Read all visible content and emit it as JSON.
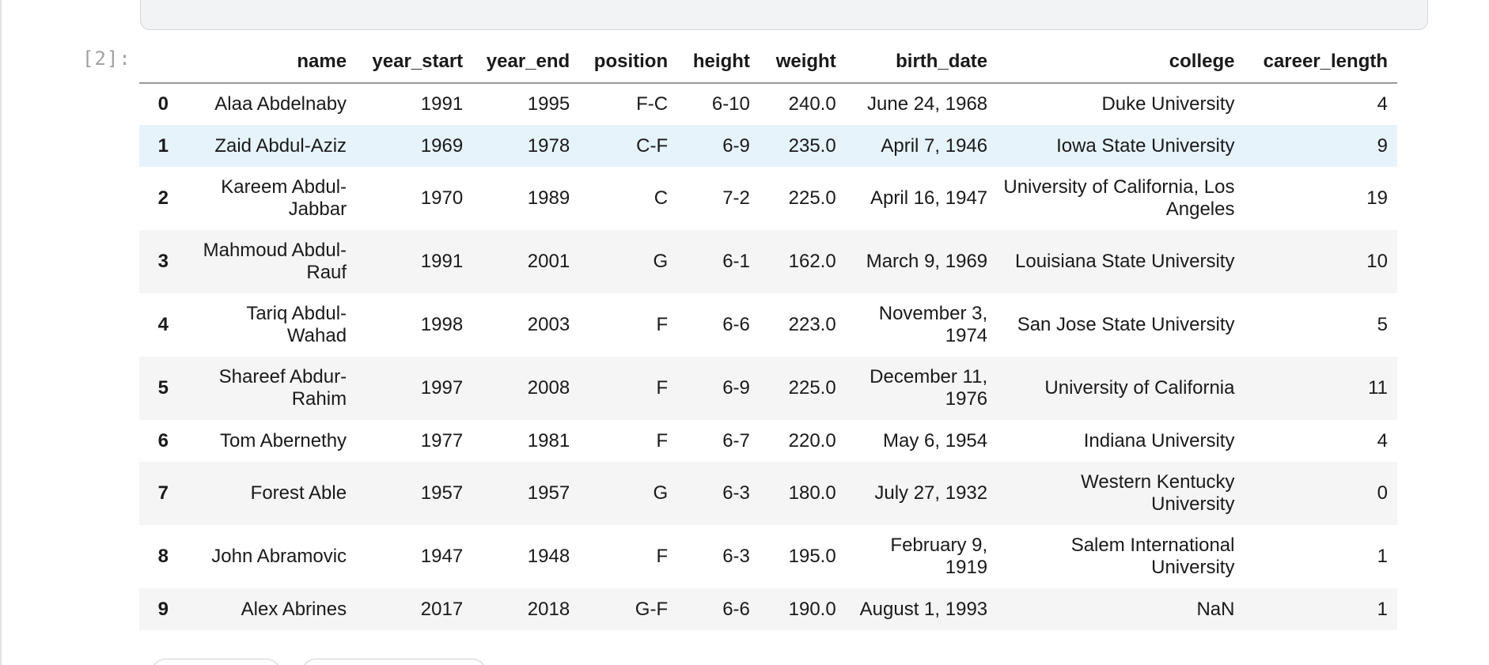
{
  "cell": {
    "prompt": "[2]:"
  },
  "table": {
    "columns": [
      "",
      "name",
      "year_start",
      "year_end",
      "position",
      "height",
      "weight",
      "birth_date",
      "college",
      "career_length"
    ],
    "rows": [
      {
        "index": "0",
        "name": "Alaa Abdelnaby",
        "year_start": "1991",
        "year_end": "1995",
        "position": "F-C",
        "height": "6-10",
        "weight": "240.0",
        "birth_date": "June 24, 1968",
        "college": "Duke University",
        "career_length": "4"
      },
      {
        "index": "1",
        "name": "Zaid Abdul-Aziz",
        "year_start": "1969",
        "year_end": "1978",
        "position": "C-F",
        "height": "6-9",
        "weight": "235.0",
        "birth_date": "April 7, 1946",
        "college": "Iowa State University",
        "career_length": "9"
      },
      {
        "index": "2",
        "name": "Kareem Abdul-Jabbar",
        "year_start": "1970",
        "year_end": "1989",
        "position": "C",
        "height": "7-2",
        "weight": "225.0",
        "birth_date": "April 16, 1947",
        "college": "University of California, Los Angeles",
        "career_length": "19"
      },
      {
        "index": "3",
        "name": "Mahmoud Abdul-Rauf",
        "year_start": "1991",
        "year_end": "2001",
        "position": "G",
        "height": "6-1",
        "weight": "162.0",
        "birth_date": "March 9, 1969",
        "college": "Louisiana State University",
        "career_length": "10"
      },
      {
        "index": "4",
        "name": "Tariq Abdul-Wahad",
        "year_start": "1998",
        "year_end": "2003",
        "position": "F",
        "height": "6-6",
        "weight": "223.0",
        "birth_date": "November 3, 1974",
        "college": "San Jose State University",
        "career_length": "5"
      },
      {
        "index": "5",
        "name": "Shareef Abdur-Rahim",
        "year_start": "1997",
        "year_end": "2008",
        "position": "F",
        "height": "6-9",
        "weight": "225.0",
        "birth_date": "December 11, 1976",
        "college": "University of California",
        "career_length": "11"
      },
      {
        "index": "6",
        "name": "Tom Abernethy",
        "year_start": "1977",
        "year_end": "1981",
        "position": "F",
        "height": "6-7",
        "weight": "220.0",
        "birth_date": "May 6, 1954",
        "college": "Indiana University",
        "career_length": "4"
      },
      {
        "index": "7",
        "name": "Forest Able",
        "year_start": "1957",
        "year_end": "1957",
        "position": "G",
        "height": "6-3",
        "weight": "180.0",
        "birth_date": "July 27, 1932",
        "college": "Western Kentucky University",
        "career_length": "0"
      },
      {
        "index": "8",
        "name": "John Abramovic",
        "year_start": "1947",
        "year_end": "1948",
        "position": "F",
        "height": "6-3",
        "weight": "195.0",
        "birth_date": "February 9, 1919",
        "college": "Salem International University",
        "career_length": "1"
      },
      {
        "index": "9",
        "name": "Alex Abrines",
        "year_start": "2017",
        "year_end": "2018",
        "position": "G-F",
        "height": "6-6",
        "weight": "190.0",
        "birth_date": "August 1, 1993",
        "college": "NaN",
        "career_length": "1"
      }
    ]
  },
  "colors": {
    "hover_row": "#e6f3fb",
    "striped_row": "#f5f5f5",
    "prompt_text": "#a0a0a0"
  }
}
